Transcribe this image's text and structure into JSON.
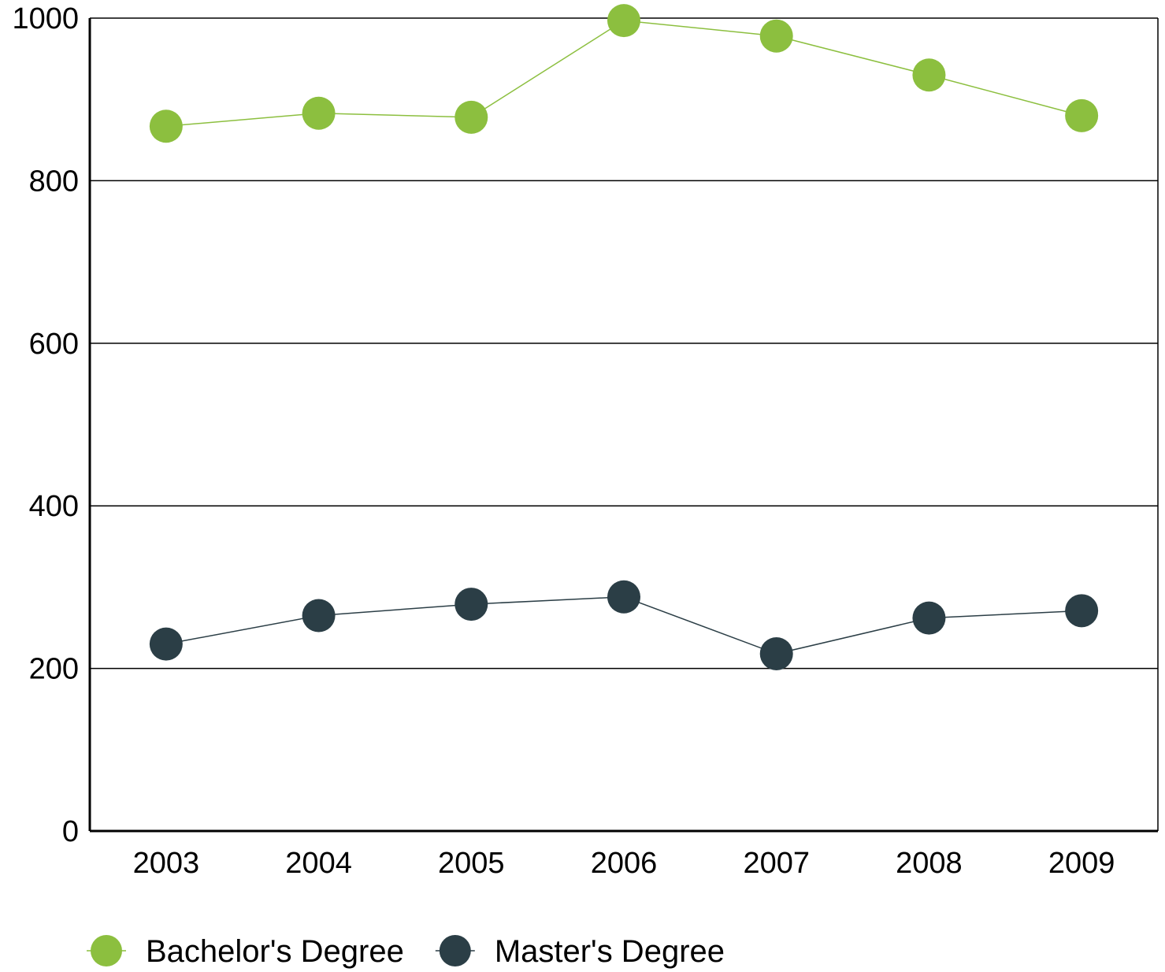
{
  "chart_data": {
    "type": "line",
    "title": "",
    "xlabel": "",
    "ylabel": "",
    "x": [
      "2003",
      "2004",
      "2005",
      "2006",
      "2007",
      "2008",
      "2009"
    ],
    "ylim": [
      0,
      1000
    ],
    "yticks": [
      "0",
      "200",
      "400",
      "600",
      "800",
      "1000"
    ],
    "grid": true,
    "legend_position": "bottom-left",
    "series": [
      {
        "name": "Bachelor's Degree",
        "color": "#8cbf3f",
        "values": [
          867,
          883,
          878,
          997,
          978,
          930,
          880
        ]
      },
      {
        "name": "Master's Degree",
        "color": "#2b3e46",
        "values": [
          230,
          265,
          279,
          288,
          218,
          262,
          271
        ]
      }
    ]
  }
}
